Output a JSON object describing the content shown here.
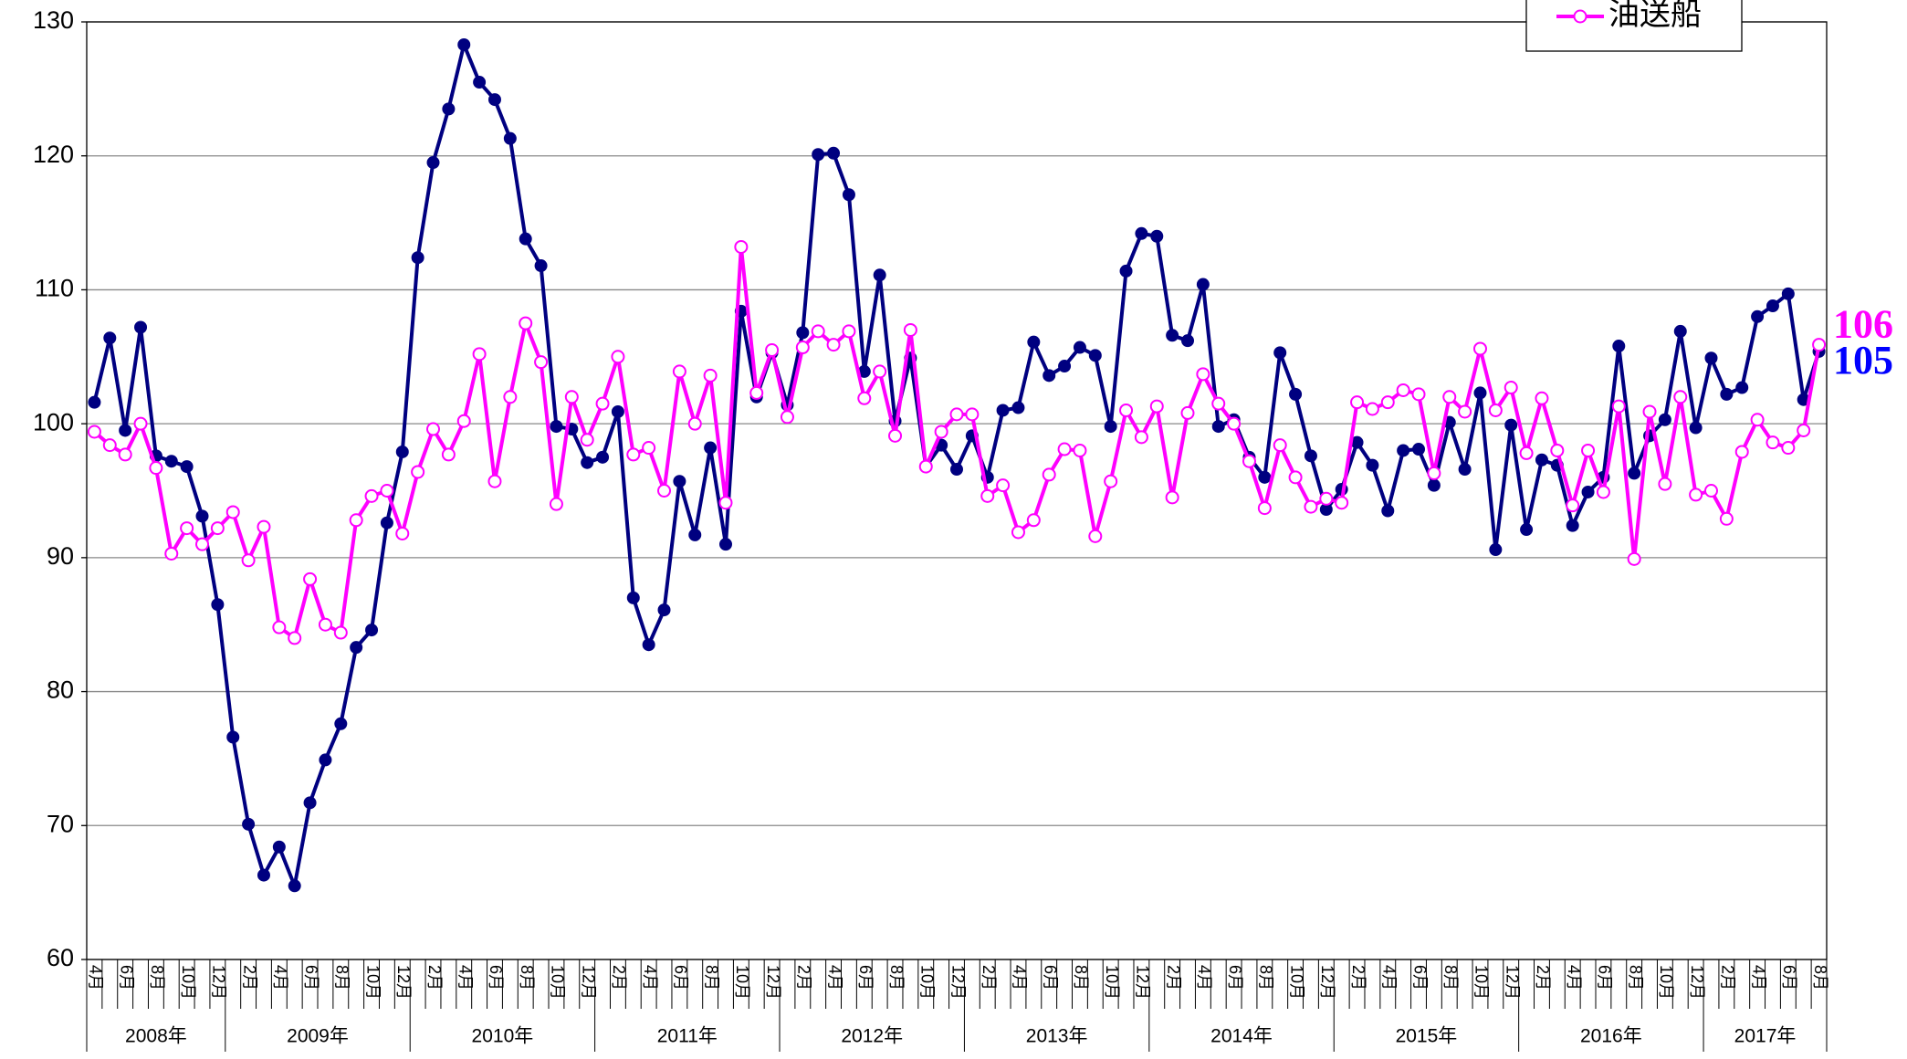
{
  "chart_data": {
    "type": "line",
    "categories": [
      "4月",
      null,
      "6月",
      null,
      "8月",
      null,
      "10月",
      null,
      "12月",
      null,
      "2月",
      null,
      "4月",
      null,
      "6月",
      null,
      "8月",
      null,
      "10月",
      null,
      "12月",
      null,
      "2月",
      null,
      "4月",
      null,
      "6月",
      null,
      "8月",
      null,
      "10月",
      null,
      "12月",
      null,
      "2月",
      null,
      "4月",
      null,
      "6月",
      null,
      "8月",
      null,
      "10月",
      null,
      "12月",
      null,
      "2月",
      null,
      "4月",
      null,
      "6月",
      null,
      "8月",
      null,
      "10月",
      null,
      "12月",
      null,
      "2月",
      null,
      "4月",
      null,
      "6月",
      null,
      "8月",
      null,
      "10月",
      null,
      "12月",
      null,
      "2月",
      null,
      "4月",
      null,
      "6月",
      null,
      "8月",
      null,
      "10月",
      null,
      "12月",
      null,
      "2月",
      null,
      "4月",
      null,
      "6月",
      null,
      "8月",
      null,
      "10月",
      null,
      "12月",
      null,
      "2月",
      null,
      "4月",
      null,
      "6月",
      null,
      "8月",
      null,
      "10月",
      null,
      "12月",
      null,
      "2月",
      null,
      "4月",
      null,
      "6月",
      null,
      "8月"
    ],
    "year_labels": [
      "2008年",
      "2009年",
      "2010年",
      "2011年",
      "2012年",
      "2013年",
      "2014年",
      "2015年",
      "2016年",
      "2017年"
    ],
    "series": [
      {
        "color": "#000080",
        "marker": "filled",
        "end_label": "105",
        "end_label_color": "#0000ff",
        "values": [
          101.6,
          106.4,
          99.5,
          107.2,
          97.6,
          97.2,
          96.8,
          93.1,
          86.5,
          76.6,
          70.1,
          66.3,
          68.4,
          65.5,
          71.7,
          74.9,
          77.6,
          83.3,
          84.6,
          92.6,
          97.9,
          112.4,
          119.5,
          123.5,
          128.3,
          125.5,
          124.2,
          121.3,
          113.8,
          111.8,
          99.8,
          99.6,
          97.1,
          97.5,
          100.9,
          87.0,
          83.5,
          86.1,
          95.7,
          91.7,
          98.2,
          91.0,
          108.4,
          102.0,
          105.3,
          101.4,
          106.8,
          120.1,
          120.2,
          117.1,
          103.9,
          111.1,
          100.2,
          104.9,
          96.8,
          98.4,
          96.6,
          99.1,
          96.0,
          101.0,
          101.2,
          106.1,
          103.6,
          104.3,
          105.7,
          105.1,
          99.8,
          111.4,
          114.2,
          114.0,
          106.6,
          106.2,
          110.4,
          99.8,
          100.3,
          97.5,
          96.0,
          105.3,
          102.2,
          97.6,
          93.6,
          95.1,
          98.6,
          96.9,
          93.5,
          98.0,
          98.1,
          95.4,
          100.1,
          96.6,
          102.3,
          90.6,
          99.9,
          92.1,
          97.3,
          96.9,
          92.4,
          94.9,
          96.0,
          105.8,
          96.3,
          99.1,
          100.3,
          106.9,
          99.7,
          104.9,
          102.2,
          102.7,
          108.0,
          108.8,
          109.7,
          101.8,
          105.4
        ]
      },
      {
        "name": "油送船",
        "color": "#ff00ff",
        "marker": "open",
        "end_label": "106",
        "end_label_color": "#ff00ff",
        "values": [
          99.4,
          98.4,
          97.7,
          100.0,
          96.7,
          90.3,
          92.2,
          91.0,
          92.2,
          93.4,
          89.8,
          92.3,
          84.8,
          84.0,
          88.4,
          85.0,
          84.4,
          92.8,
          94.6,
          95.0,
          91.8,
          96.4,
          99.6,
          97.7,
          100.2,
          105.2,
          95.7,
          102.0,
          107.5,
          104.6,
          94.0,
          102.0,
          98.8,
          101.5,
          105.0,
          97.7,
          98.2,
          95.0,
          103.9,
          100.0,
          103.6,
          94.1,
          113.2,
          102.3,
          105.5,
          100.5,
          105.7,
          106.9,
          105.9,
          106.9,
          101.9,
          103.9,
          99.1,
          107.0,
          96.8,
          99.4,
          100.7,
          100.7,
          94.6,
          95.4,
          91.9,
          92.8,
          96.2,
          98.1,
          98.0,
          91.6,
          95.7,
          101.0,
          99.0,
          101.3,
          94.5,
          100.8,
          103.7,
          101.5,
          100.0,
          97.2,
          93.7,
          98.4,
          96.0,
          93.8,
          94.4,
          94.1,
          101.6,
          101.1,
          101.6,
          102.5,
          102.2,
          96.3,
          102.0,
          100.9,
          105.6,
          101.0,
          102.7,
          97.8,
          101.9,
          98.0,
          93.9,
          98.0,
          94.9,
          101.3,
          89.9,
          100.9,
          95.5,
          102.0,
          94.7,
          95.0,
          92.9,
          97.9,
          100.3,
          98.6,
          98.2,
          99.5,
          105.9
        ]
      }
    ],
    "ylim": [
      60,
      130
    ],
    "yticks": [
      60,
      70,
      80,
      90,
      100,
      110,
      120,
      130
    ],
    "grid": true
  }
}
